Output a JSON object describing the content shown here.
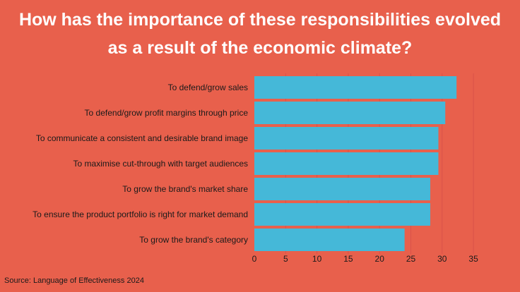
{
  "title_lines": [
    "How has the importance of these responsibilities evolved",
    "as a result of the economic climate?"
  ],
  "source": "Source: Language of Effectiveness 2024",
  "colors": {
    "background": "#E8604C",
    "bar": "#45B8D8",
    "title": "#FFFFFF",
    "text": "#1A1A1A",
    "gridline": "#D9534A"
  },
  "chart_data": {
    "type": "bar",
    "orientation": "horizontal",
    "title": "How has the importance of these responsibilities evolved as a result of the economic climate?",
    "categories": [
      "To defend/grow sales",
      "To defend/grow profit margins through price",
      "To communicate a consistent and desirable brand image",
      "To maximise cut-through with target audiences",
      "To grow the brand's market share",
      "To ensure the product portfolio is right for market demand",
      "To grow the brand's category"
    ],
    "values": [
      32.3,
      30.5,
      29.4,
      29.4,
      28.1,
      28.1,
      24.0
    ],
    "xlim": [
      0,
      35
    ],
    "xticks": [
      0,
      5,
      10,
      15,
      20,
      25,
      30,
      35
    ],
    "xlabel": "",
    "ylabel": "",
    "grid": true,
    "legend": "none"
  }
}
